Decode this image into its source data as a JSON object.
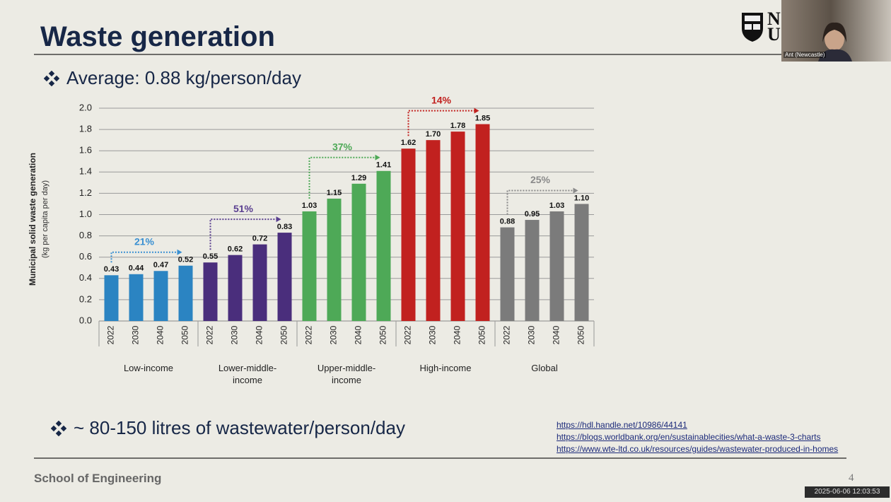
{
  "slide": {
    "title": "Waste generation",
    "bullets": [
      "Average: 0.88 kg/person/day",
      "~ 80-150 litres of wastewater/person/day"
    ],
    "links": [
      "https://hdl.handle.net/10986/44141",
      "https://blogs.worldbank.org/en/sustainablecities/what-a-waste-3-charts",
      "https://www.wte-ltd.co.uk/resources/guides/wastewater-produced-in-homes"
    ],
    "footer": "School of Engineering",
    "page_number": "4",
    "logo_letters": [
      "N",
      "U"
    ]
  },
  "video": {
    "participant": "Ant (Newcastle)",
    "timestamp": "2025-06-06 12:03:53"
  },
  "chart_data": {
    "type": "bar",
    "ylabel": "Municipal solid waste generation",
    "ylabel_unit": "(kg per capita per day)",
    "ylim": [
      0,
      2
    ],
    "yticks": [
      {
        "value": 0,
        "label": "0.0"
      },
      {
        "value": 0.2,
        "label": "0.2"
      },
      {
        "value": 0.4,
        "label": "0.4"
      },
      {
        "value": 0.6,
        "label": "0.6"
      },
      {
        "value": 0.8,
        "label": "0.8"
      },
      {
        "value": 1,
        "label": "1.0"
      },
      {
        "value": 1.2,
        "label": "1.2"
      },
      {
        "value": 1.4,
        "label": "1.4"
      },
      {
        "value": 1.6,
        "label": "1.6"
      },
      {
        "value": 1.8,
        "label": "1.8"
      },
      {
        "value": 2,
        "label": "2.0"
      }
    ],
    "grid": true,
    "groups": [
      {
        "name": "Low-income",
        "color": "#2b84c2",
        "label_color": "#3a90d2",
        "categories": [
          "2022",
          "2030",
          "2040",
          "2050"
        ],
        "values": [
          0.43,
          0.44,
          0.47,
          0.52
        ],
        "value_labels": [
          "0.43",
          "0.44",
          "0.47",
          "0.52"
        ],
        "growth_label": "21%"
      },
      {
        "name": "Lower-middle-income",
        "color": "#4a2e7c",
        "label_color": "#5a3f90",
        "categories": [
          "2022",
          "2030",
          "2040",
          "2050"
        ],
        "values": [
          0.55,
          0.62,
          0.72,
          0.83
        ],
        "value_labels": [
          "0.55",
          "0.62",
          "0.72",
          "0.83"
        ],
        "growth_label": "51%"
      },
      {
        "name": "Upper-middle-income",
        "color": "#4ea957",
        "label_color": "#4ea957",
        "categories": [
          "2022",
          "2030",
          "2040",
          "2050"
        ],
        "values": [
          1.03,
          1.15,
          1.29,
          1.41
        ],
        "value_labels": [
          "1.03",
          "1.15",
          "1.29",
          "1.41"
        ],
        "growth_label": "37%"
      },
      {
        "name": "High-income",
        "color": "#c1211f",
        "label_color": "#c1211f",
        "categories": [
          "2022",
          "2030",
          "2040",
          "2050"
        ],
        "values": [
          1.62,
          1.7,
          1.78,
          1.85
        ],
        "value_labels": [
          "1.62",
          "1.70",
          "1.78",
          "1.85"
        ],
        "growth_label": "14%"
      },
      {
        "name": "Global",
        "color": "#7b7b7b",
        "label_color": "#8a8a8a",
        "categories": [
          "2022",
          "2030",
          "2040",
          "2050"
        ],
        "values": [
          0.88,
          0.95,
          1.03,
          1.1
        ],
        "value_labels": [
          "0.88",
          "0.95",
          "1.03",
          "1.10"
        ],
        "growth_label": "25%"
      }
    ]
  }
}
